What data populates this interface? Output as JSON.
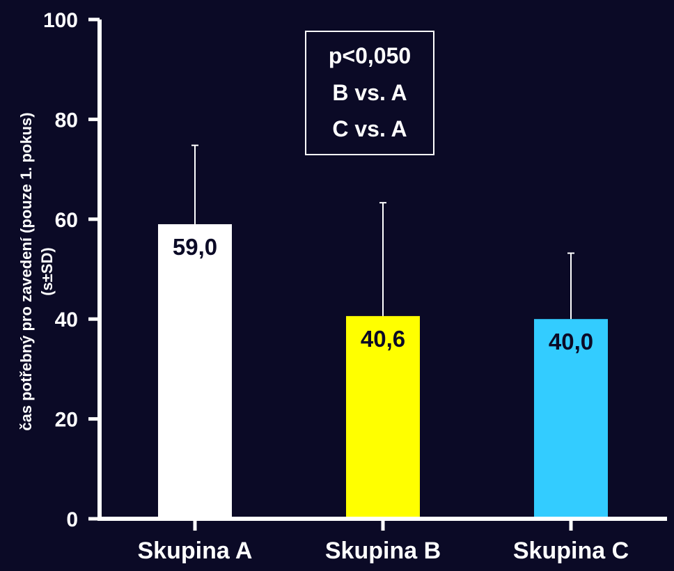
{
  "chart_data": {
    "type": "bar",
    "categories": [
      "Skupina A",
      "Skupina B",
      "Skupina C"
    ],
    "values": [
      59.0,
      40.6,
      40.0
    ],
    "error_upper": [
      74.8,
      63.3,
      53.2
    ],
    "data_labels": [
      "59,0",
      "40,6",
      "40,0"
    ],
    "bar_colors": [
      "#ffffff",
      "#ffff00",
      "#33ccff"
    ],
    "data_label_colors": [
      "#0b0a26",
      "#0b0a26",
      "#0b0a26"
    ],
    "ylabel_line1": "čas potřebný pro zavedení (pouze 1. pokus)",
    "ylabel_line2": "(s±SD)",
    "ylim": [
      0,
      100
    ],
    "yticks": [
      0,
      20,
      40,
      60,
      80,
      100
    ],
    "grid": false,
    "annotation": [
      "p<0,050",
      "B vs. A",
      "C vs. A"
    ],
    "background": "#0b0a26",
    "axis_color": "#ffffff"
  }
}
